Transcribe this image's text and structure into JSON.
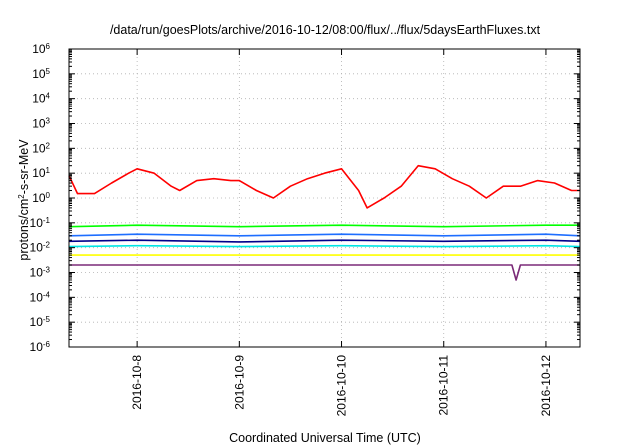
{
  "chart_data": {
    "type": "line",
    "title": "/data/run/goesPlots/archive/2016-10-12/08:00/flux/../flux/5daysEarthFluxes.txt",
    "xlabel": "Coordinated Universal Time (UTC)",
    "ylabel": {
      "prefix": "protons/cm",
      "superscript": "2",
      "suffix": "-s-sr-MeV"
    },
    "yscale": "log",
    "ylim_exponents": [
      -6,
      6
    ],
    "y_ticks": [
      {
        "base": "10",
        "exp": "6",
        "value": 1000000
      },
      {
        "base": "10",
        "exp": "5",
        "value": 100000
      },
      {
        "base": "10",
        "exp": "4",
        "value": 10000
      },
      {
        "base": "10",
        "exp": "3",
        "value": 1000
      },
      {
        "base": "10",
        "exp": "2",
        "value": 100
      },
      {
        "base": "10",
        "exp": "1",
        "value": 10
      },
      {
        "base": "10",
        "exp": "0",
        "value": 1
      },
      {
        "base": "10",
        "exp": "-1",
        "value": 0.1
      },
      {
        "base": "10",
        "exp": "-2",
        "value": 0.01
      },
      {
        "base": "10",
        "exp": "-3",
        "value": 0.001
      },
      {
        "base": "10",
        "exp": "-4",
        "value": 0.0001
      },
      {
        "base": "10",
        "exp": "-5",
        "value": 1e-05
      },
      {
        "base": "10",
        "exp": "-6",
        "value": 1e-06
      }
    ],
    "xlim": [
      "2016-10-07T08:00",
      "2016-10-12T08:00"
    ],
    "x_ticks": [
      {
        "label": "2016-10-8",
        "date": "2016-10-08T00:00"
      },
      {
        "label": "2016-10-9",
        "date": "2016-10-09T00:00"
      },
      {
        "label": "2016-10-10",
        "date": "2016-10-10T00:00"
      },
      {
        "label": "2016-10-11",
        "date": "2016-10-11T00:00"
      },
      {
        "label": "2016-10-12",
        "date": "2016-10-12T00:00"
      }
    ],
    "grid": true,
    "series": [
      {
        "color": "#ff0000",
        "x": [
          "2016-10-07T08:00",
          "2016-10-07T10:00",
          "2016-10-07T14:00",
          "2016-10-07T18:00",
          "2016-10-07T22:00",
          "2016-10-08T00:00",
          "2016-10-08T04:00",
          "2016-10-08T08:00",
          "2016-10-08T10:00",
          "2016-10-08T14:00",
          "2016-10-08T18:00",
          "2016-10-08T22:00",
          "2016-10-09T00:00",
          "2016-10-09T04:00",
          "2016-10-09T08:00",
          "2016-10-09T12:00",
          "2016-10-09T16:00",
          "2016-10-09T20:00",
          "2016-10-10T00:00",
          "2016-10-10T04:00",
          "2016-10-10T06:00",
          "2016-10-10T10:00",
          "2016-10-10T14:00",
          "2016-10-10T18:00",
          "2016-10-10T22:00",
          "2016-10-11T02:00",
          "2016-10-11T06:00",
          "2016-10-11T10:00",
          "2016-10-11T14:00",
          "2016-10-11T18:00",
          "2016-10-11T22:00",
          "2016-10-12T02:00",
          "2016-10-12T06:00",
          "2016-10-12T08:00"
        ],
        "values": [
          8,
          1.5,
          1.5,
          4,
          10,
          15,
          10,
          3,
          2,
          5,
          6,
          5,
          5,
          2,
          1,
          3,
          6,
          10,
          15,
          2,
          0.4,
          1,
          3,
          20,
          15,
          6,
          3,
          1,
          3,
          3,
          5,
          4,
          2,
          2
        ]
      },
      {
        "color": "#00ff00",
        "x": [
          "2016-10-07T08:00",
          "2016-10-08T00:00",
          "2016-10-09T00:00",
          "2016-10-10T00:00",
          "2016-10-11T00:00",
          "2016-10-12T00:00",
          "2016-10-12T08:00"
        ],
        "values": [
          0.07,
          0.08,
          0.07,
          0.08,
          0.07,
          0.08,
          0.08
        ]
      },
      {
        "color": "#1e6eff",
        "x": [
          "2016-10-07T08:00",
          "2016-10-08T00:00",
          "2016-10-09T00:00",
          "2016-10-10T00:00",
          "2016-10-11T00:00",
          "2016-10-12T00:00",
          "2016-10-12T08:00"
        ],
        "values": [
          0.03,
          0.035,
          0.03,
          0.035,
          0.03,
          0.035,
          0.03
        ]
      },
      {
        "color": "#00008b",
        "x": [
          "2016-10-07T08:00",
          "2016-10-08T00:00",
          "2016-10-09T00:00",
          "2016-10-10T00:00",
          "2016-10-11T00:00",
          "2016-10-12T00:00",
          "2016-10-12T08:00"
        ],
        "values": [
          0.018,
          0.02,
          0.017,
          0.02,
          0.018,
          0.02,
          0.018
        ]
      },
      {
        "color": "#00e5e5",
        "x": [
          "2016-10-07T08:00",
          "2016-10-08T00:00",
          "2016-10-09T00:00",
          "2016-10-10T00:00",
          "2016-10-11T00:00",
          "2016-10-12T00:00",
          "2016-10-12T08:00"
        ],
        "values": [
          0.011,
          0.012,
          0.011,
          0.012,
          0.011,
          0.012,
          0.011
        ]
      },
      {
        "color": "#ffff00",
        "x": [
          "2016-10-07T08:00",
          "2016-10-08T00:00",
          "2016-10-09T00:00",
          "2016-10-10T00:00",
          "2016-10-11T00:00",
          "2016-10-12T00:00",
          "2016-10-12T08:00"
        ],
        "values": [
          0.005,
          0.005,
          0.005,
          0.005,
          0.005,
          0.005,
          0.005
        ]
      },
      {
        "color": "#7b2a78",
        "x": [
          "2016-10-07T08:00",
          "2016-10-08T00:00",
          "2016-10-09T00:00",
          "2016-10-10T00:00",
          "2016-10-11T00:00",
          "2016-10-11T16:00",
          "2016-10-11T17:00",
          "2016-10-11T18:00",
          "2016-10-12T00:00",
          "2016-10-12T08:00"
        ],
        "values": [
          0.002,
          0.002,
          0.002,
          0.002,
          0.002,
          0.002,
          0.0005,
          0.002,
          0.002,
          0.002
        ]
      }
    ]
  }
}
